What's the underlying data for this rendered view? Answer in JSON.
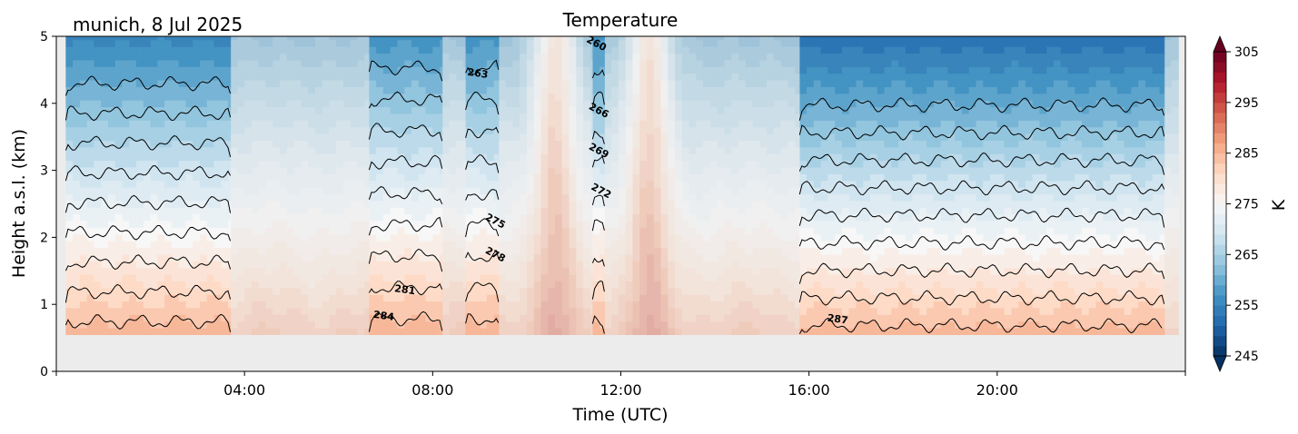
{
  "chart_data": {
    "type": "heatmap",
    "title": "Temperature",
    "subtitle": "munich, 8 Jul 2025",
    "xlabel": "Time (UTC)",
    "ylabel": "Height a.s.l. (km)",
    "xlim": [
      0,
      24
    ],
    "ylim": [
      0,
      5
    ],
    "x_ticks": [
      4,
      8,
      12,
      16,
      20
    ],
    "x_tick_labels": [
      "04:00",
      "08:00",
      "12:00",
      "16:00",
      "20:00"
    ],
    "y_ticks": [
      0,
      1,
      2,
      3,
      4,
      5
    ],
    "y_tick_labels": [
      "0",
      "1",
      "2",
      "3",
      "4",
      "5"
    ],
    "colorbar": {
      "label": "K",
      "vmin": 245,
      "vmax": 305,
      "step": 2,
      "ticks": [
        245,
        255,
        265,
        275,
        285,
        295,
        305
      ],
      "tick_labels": [
        "245",
        "255",
        "265",
        "275",
        "285",
        "295",
        "305"
      ],
      "extend": "both",
      "cmap": "RdBu_r"
    },
    "data_bottom_km": 0.55,
    "background_color": "#ececec",
    "contour_levels": [
      260,
      263,
      266,
      269,
      272,
      275,
      278,
      281,
      284,
      287
    ],
    "valid_segments": [
      {
        "start": 0.2,
        "end": 3.7
      },
      {
        "start": 6.65,
        "end": 8.2
      },
      {
        "start": 8.7,
        "end": 9.4
      },
      {
        "start": 11.4,
        "end": 11.65
      },
      {
        "start": 15.8,
        "end": 23.55
      }
    ],
    "faded_segments": [
      {
        "start": 3.7,
        "end": 6.65
      },
      {
        "start": 8.2,
        "end": 8.7
      },
      {
        "start": 9.4,
        "end": 11.4
      },
      {
        "start": 11.65,
        "end": 15.8
      },
      {
        "start": 23.55,
        "end": 23.85
      }
    ],
    "contour_labels": [
      {
        "text": "260",
        "x": 11.45,
        "y": 4.85
      },
      {
        "text": "263",
        "x": 8.95,
        "y": 4.4
      },
      {
        "text": "266",
        "x": 11.5,
        "y": 3.85
      },
      {
        "text": "269",
        "x": 11.5,
        "y": 3.25
      },
      {
        "text": "272",
        "x": 11.55,
        "y": 2.65
      },
      {
        "text": "275",
        "x": 9.3,
        "y": 2.2
      },
      {
        "text": "278",
        "x": 9.3,
        "y": 1.7
      },
      {
        "text": "281",
        "x": 7.4,
        "y": 1.17
      },
      {
        "text": "284",
        "x": 6.95,
        "y": 0.78
      },
      {
        "text": "287",
        "x": 16.6,
        "y": 0.73
      }
    ]
  }
}
